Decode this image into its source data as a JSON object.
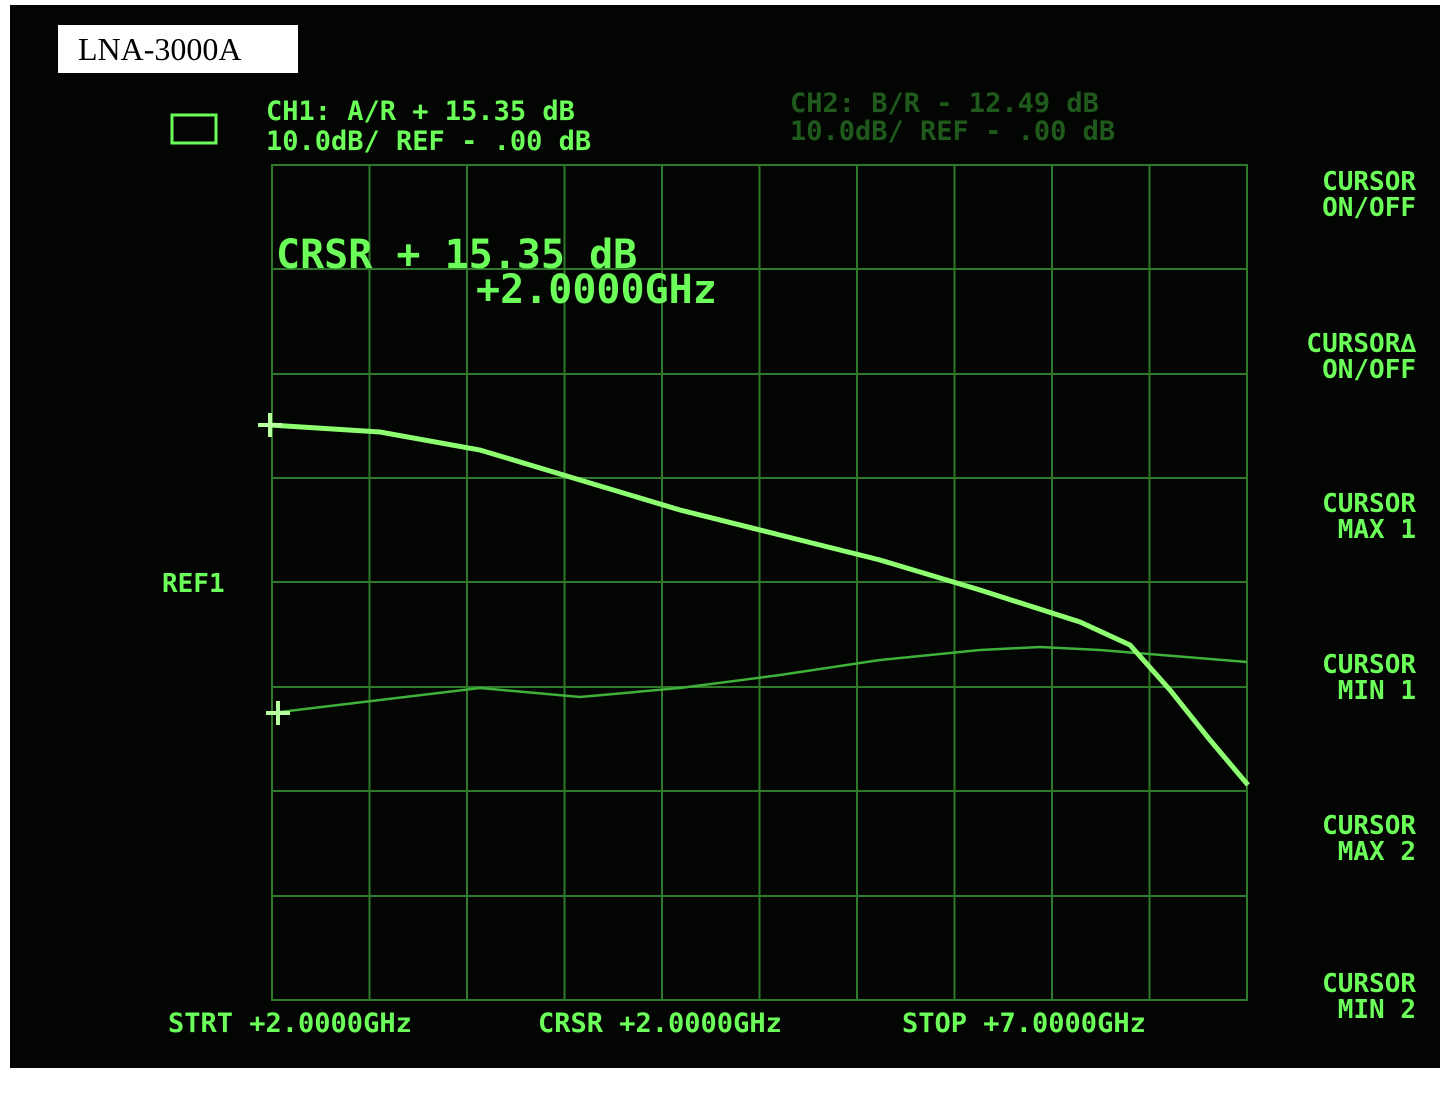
{
  "label": "LNA-3000A",
  "header": {
    "ch1": {
      "line1": "CH1: A/R + 15.35 dB",
      "line2": "10.0dB/ REF - .00 dB"
    },
    "ch2": {
      "line1": "CH2: B/R - 12.49 dB",
      "line2": "10.0dB/ REF - .00 dB"
    }
  },
  "cursor_readout": {
    "value": "CRSR + 15.35 dB",
    "frequency": "+2.0000GHz"
  },
  "ref_marker": "REF1",
  "footer": {
    "start": "STRT +2.0000GHz",
    "cursor": "CRSR +2.0000GHz",
    "stop": "STOP +7.0000GHz"
  },
  "softkeys": [
    {
      "line1": "CURSOR",
      "line2": "ON/OFF"
    },
    {
      "line1": "CURSOR∆",
      "line2": "ON/OFF"
    },
    {
      "line1": "CURSOR",
      "line2": "MAX 1"
    },
    {
      "line1": "CURSOR",
      "line2": "MIN 1"
    },
    {
      "line1": "CURSOR",
      "line2": "MAX 2"
    },
    {
      "line1": "CURSOR",
      "line2": "MIN 2"
    }
  ]
}
